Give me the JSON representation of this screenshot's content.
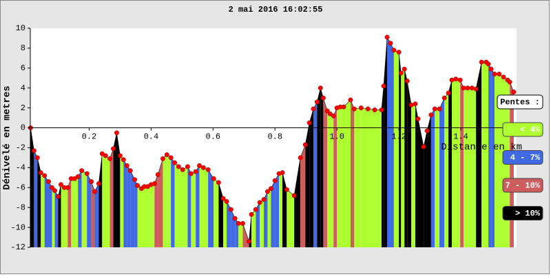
{
  "chart_data": {
    "type": "profile",
    "title": "2 mai 2016 16:02:55",
    "x_label": "Distance en km",
    "y_label": "Dénivelé en metres",
    "xlim": [
      0.01,
      1.58
    ],
    "ylim": [
      -12,
      10
    ],
    "xticks": [
      0.2,
      0.4,
      0.6,
      0.8,
      {
        "value": 1,
        "label": "1.0"
      },
      1.2,
      1.4
    ],
    "yticks": [
      -12,
      -10,
      -8,
      -6,
      -4,
      -2,
      0,
      2,
      4,
      6,
      8,
      10
    ],
    "grid": false,
    "marker_color": "#ff0000",
    "line_color": "#000000",
    "legend_title": "Pentes :",
    "legend": [
      {
        "label": "< 4%",
        "color": "#adff2f",
        "max": 4
      },
      {
        "label": "4 - 7%",
        "color": "#4169e1",
        "max": 7
      },
      {
        "label": "7 - 10%",
        "color": "#cd5c5c",
        "max": 10
      },
      {
        "label": "> 10%",
        "color": "#000000",
        "max": null
      }
    ],
    "x": [
      0.011,
      0.022,
      0.033,
      0.044,
      0.056,
      0.069,
      0.08,
      0.089,
      0.1,
      0.109,
      0.12,
      0.131,
      0.142,
      0.153,
      0.164,
      0.176,
      0.193,
      0.207,
      0.218,
      0.231,
      0.242,
      0.253,
      0.267,
      0.278,
      0.289,
      0.3,
      0.311,
      0.322,
      0.333,
      0.347,
      0.356,
      0.369,
      0.378,
      0.389,
      0.4,
      0.411,
      0.422,
      0.438,
      0.451,
      0.464,
      0.476,
      0.489,
      0.502,
      0.518,
      0.529,
      0.544,
      0.556,
      0.569,
      0.584,
      0.602,
      0.618,
      0.633,
      0.644,
      0.658,
      0.671,
      0.682,
      0.696,
      0.716,
      0.724,
      0.738,
      0.751,
      0.764,
      0.776,
      0.787,
      0.8,
      0.813,
      0.824,
      0.838,
      0.862,
      0.882,
      0.898,
      0.911,
      0.924,
      0.936,
      0.947,
      0.956,
      0.969,
      0.978,
      0.989,
      1.0,
      1.011,
      1.022,
      1.044,
      1.056,
      1.078,
      1.1,
      1.122,
      1.144,
      1.151,
      1.162,
      1.173,
      1.184,
      1.2,
      1.207,
      1.218,
      1.227,
      1.24,
      1.253,
      1.262,
      1.28,
      1.291,
      1.304,
      1.316,
      1.331,
      1.347,
      1.36,
      1.371,
      1.384,
      1.398,
      1.409,
      1.422,
      1.436,
      1.449,
      1.467,
      1.482,
      1.489,
      1.498,
      1.509,
      1.524,
      1.538,
      1.551,
      1.558,
      1.571
    ],
    "values": [
      0,
      -2.3,
      -3.0,
      -4.5,
      -4.8,
      -5.4,
      -6.0,
      -6.3,
      -6.9,
      -5.7,
      -6.0,
      -6.0,
      -5.1,
      -5.1,
      -4.9,
      -4.3,
      -4.6,
      -5.4,
      -6.4,
      -5.6,
      -2.6,
      -2.8,
      -3.1,
      -2.1,
      -0.5,
      -2.8,
      -3.2,
      -3.8,
      -4.3,
      -5.2,
      -5.8,
      -6.1,
      -5.9,
      -5.9,
      -5.7,
      -5.6,
      -4.7,
      -3.1,
      -2.7,
      -3.0,
      -3.5,
      -3.9,
      -4.2,
      -3.9,
      -4.6,
      -4.4,
      -3.8,
      -4.0,
      -4.2,
      -5.1,
      -5.5,
      -7.1,
      -7.4,
      -8.2,
      -9.1,
      -9.6,
      -9.6,
      -11.4,
      -8.7,
      -8.2,
      -7.5,
      -7.2,
      -6.4,
      -6.1,
      -5.3,
      -4.6,
      -4.5,
      -6.2,
      -6.8,
      -3.0,
      -1.7,
      0.5,
      1.9,
      2.6,
      4.0,
      3.0,
      1.7,
      1.4,
      1.2,
      2.0,
      2.1,
      2.1,
      2.8,
      1.9,
      2.0,
      1.9,
      1.8,
      1.8,
      4.2,
      9.1,
      8.5,
      7.8,
      7.6,
      5.5,
      5.9,
      4.7,
      2.3,
      2.4,
      0.9,
      -1.9,
      -0.3,
      1.3,
      1.9,
      1.9,
      3.0,
      3.5,
      4.8,
      4.9,
      4.8,
      4.0,
      4.0,
      4.0,
      3.9,
      6.6,
      6.6,
      6.4,
      5.9,
      5.4,
      5.4,
      5.1,
      4.8,
      4.6,
      3.6
    ]
  }
}
